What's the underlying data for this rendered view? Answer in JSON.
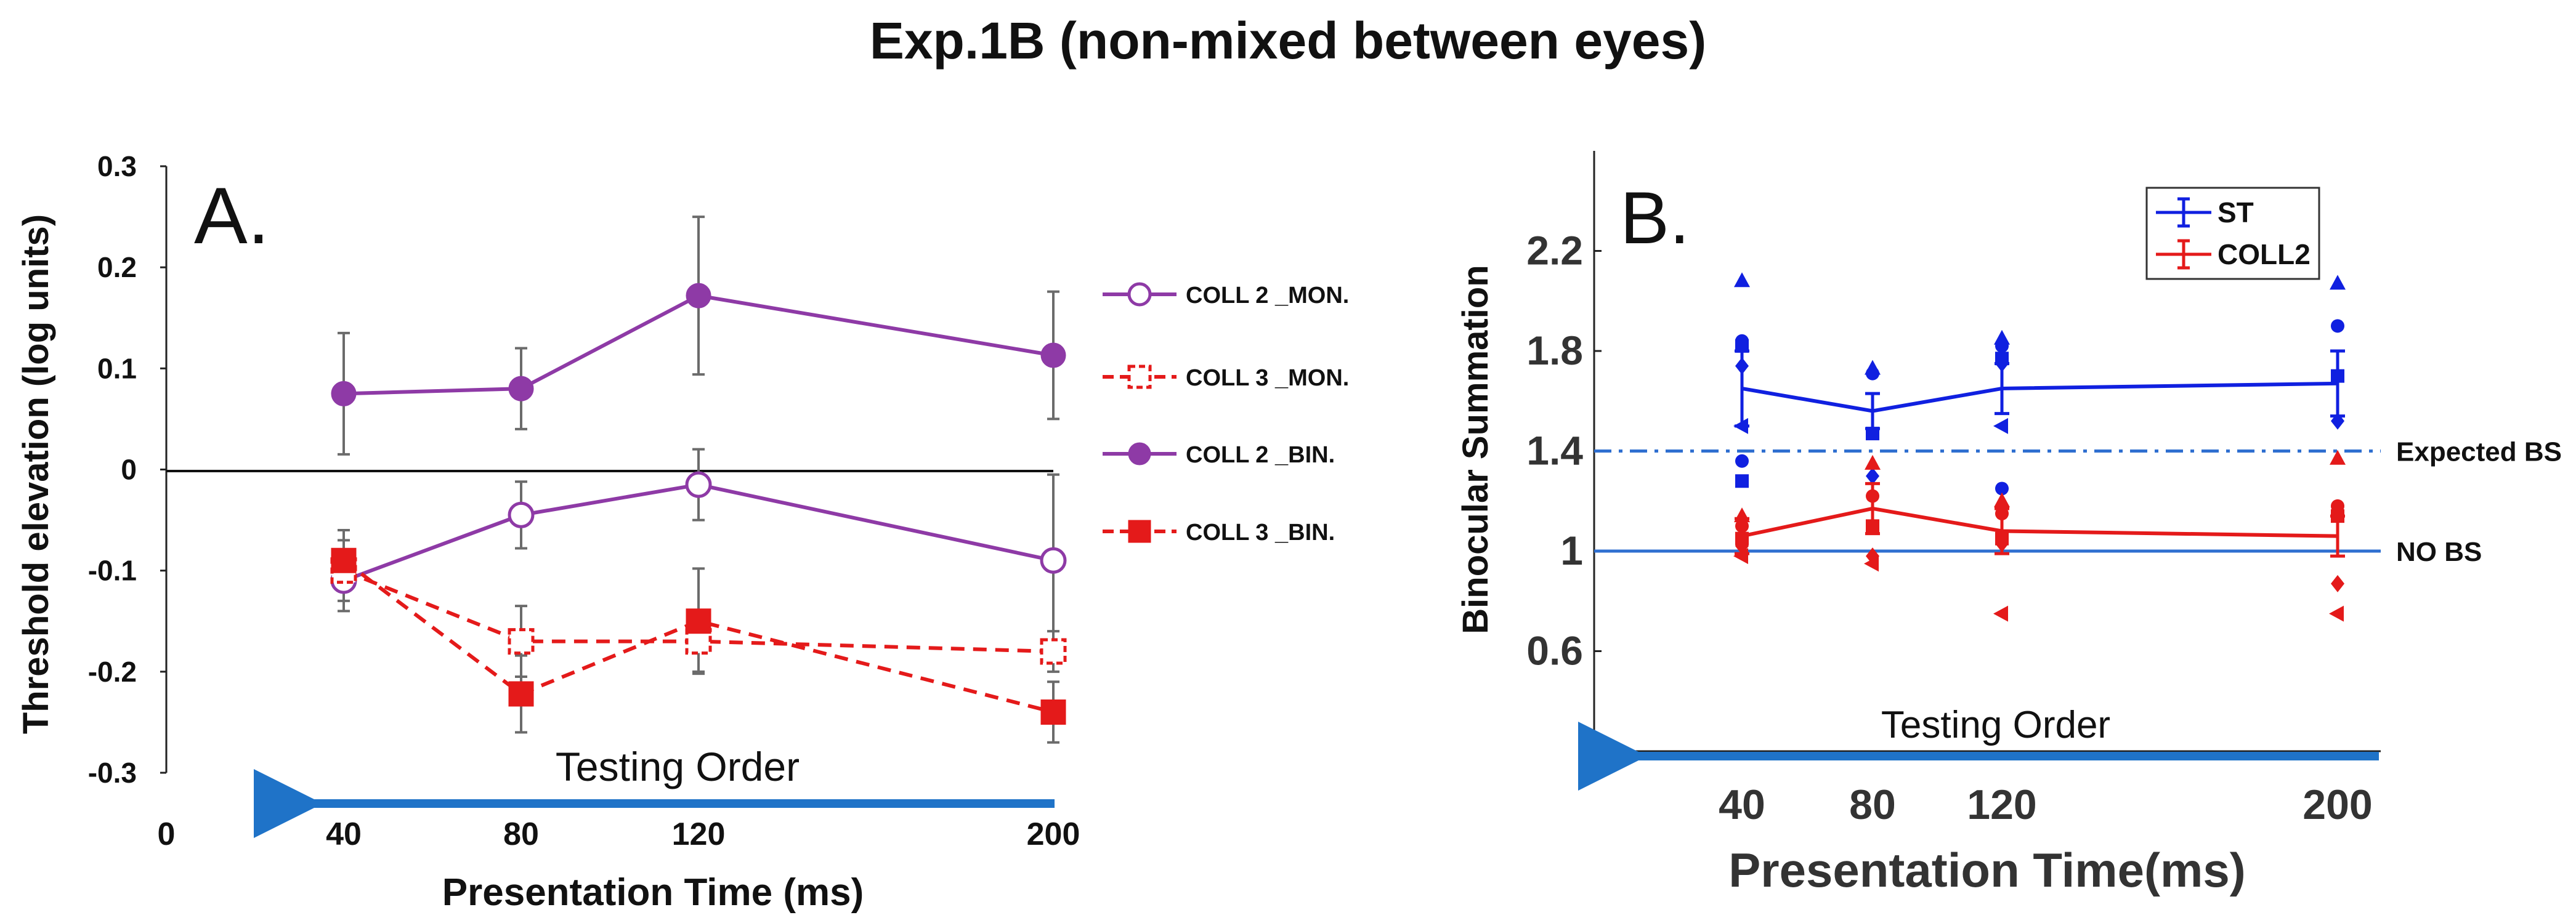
{
  "figure": {
    "title": "Exp.1B (non-mixed between eyes)"
  },
  "chart_data": [
    {
      "type": "line",
      "panel_label": "A.",
      "xlabel": "Presentation Time (ms)",
      "ylabel": "Threshold elevation (log units)",
      "x_ticks": [
        0,
        40,
        80,
        120,
        200
      ],
      "y_ticks": [
        0.3,
        0.2,
        0.1,
        0,
        -0.1,
        -0.2,
        -0.3
      ],
      "xlim": [
        0,
        200
      ],
      "ylim": [
        -0.3,
        0.3
      ],
      "zero_line": true,
      "arrow_label": "Testing Order",
      "legend_position": "right",
      "x": [
        40,
        80,
        120,
        200
      ],
      "series": [
        {
          "name": "COLL 2 _MON.",
          "values": [
            -0.11,
            -0.045,
            -0.015,
            -0.09
          ],
          "errors": [
            0.03,
            0.033,
            0.035,
            0.085
          ],
          "color": "#8e3aa6",
          "dashed": false,
          "marker": "circle-open"
        },
        {
          "name": "COLL 3 _MON.",
          "values": [
            -0.1,
            -0.17,
            -0.17,
            -0.18
          ],
          "errors": [
            0.03,
            0.035,
            0.03,
            0.02
          ],
          "color": "#e41a1a",
          "dashed": true,
          "marker": "square-open"
        },
        {
          "name": "COLL 2 _BIN.",
          "values": [
            0.075,
            0.08,
            0.172,
            0.113
          ],
          "errors": [
            0.06,
            0.04,
            0.078,
            0.063
          ],
          "color": "#8e3aa6",
          "dashed": false,
          "marker": "circle-filled"
        },
        {
          "name": "COLL 3 _BIN.",
          "values": [
            -0.09,
            -0.222,
            -0.15,
            -0.24
          ],
          "errors": [
            0.03,
            0.038,
            0.052,
            0.03
          ],
          "color": "#e41a1a",
          "dashed": true,
          "marker": "square-filled"
        }
      ]
    },
    {
      "type": "line",
      "panel_label": "B.",
      "xlabel": "Presentation Time(ms)",
      "ylabel": "Binocular Summation",
      "x_ticks": [
        40,
        80,
        120,
        200
      ],
      "y_ticks": [
        2.2,
        1.8,
        1.4,
        1,
        0.6
      ],
      "ylim": [
        0.2,
        2.6
      ],
      "arrow_label": "Testing Order",
      "legend_position": "top-right",
      "reference_lines": [
        {
          "label": "Expected BS",
          "value": 1.4,
          "style": "dash-dot",
          "color": "#2f6fd0"
        },
        {
          "label": "NO BS",
          "value": 1.0,
          "style": "solid",
          "color": "#2f6fd0"
        }
      ],
      "x": [
        40,
        80,
        120,
        200
      ],
      "series": [
        {
          "name": "ST",
          "color": "#1020e0",
          "values": [
            1.65,
            1.56,
            1.65,
            1.67
          ],
          "errors": [
            0.15,
            0.07,
            0.1,
            0.13
          ],
          "individual": [
            {
              "x": 40,
              "values": [
                2.08,
                1.84,
                1.82,
                1.74,
                1.5,
                1.36,
                1.28
              ]
            },
            {
              "x": 80,
              "values": [
                1.73,
                1.71,
                1.47,
                1.3
              ]
            },
            {
              "x": 120,
              "values": [
                1.85,
                1.82,
                1.77,
                1.75,
                1.5,
                1.25
              ]
            },
            {
              "x": 200,
              "values": [
                2.07,
                1.9,
                1.7,
                1.52
              ]
            }
          ]
        },
        {
          "name": "COLL2",
          "color": "#e41a1a",
          "values": [
            1.06,
            1.17,
            1.08,
            1.06
          ],
          "errors": [
            0.07,
            0.1,
            0.09,
            0.08
          ],
          "individual": [
            {
              "x": 40,
              "values": [
                1.14,
                1.1,
                1.05,
                1.02,
                0.98
              ]
            },
            {
              "x": 80,
              "values": [
                1.35,
                1.22,
                1.1,
                0.98,
                0.95
              ]
            },
            {
              "x": 120,
              "values": [
                1.2,
                1.15,
                1.05,
                1.03,
                0.75
              ]
            },
            {
              "x": 200,
              "values": [
                1.37,
                1.18,
                1.14,
                0.87,
                0.75
              ]
            }
          ]
        }
      ]
    }
  ]
}
